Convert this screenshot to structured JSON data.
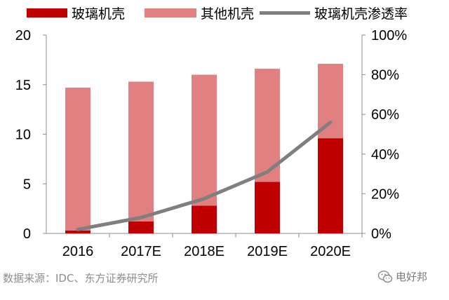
{
  "chart_data": {
    "type": "bar",
    "categories": [
      "2016",
      "2017E",
      "2018E",
      "2019E",
      "2020E"
    ],
    "series": [
      {
        "name": "玻璃机壳",
        "kind": "bar-stacked",
        "axis": "left",
        "color": "#c00000",
        "values": [
          0.3,
          1.2,
          2.8,
          5.2,
          9.6
        ]
      },
      {
        "name": "其他机壳",
        "kind": "bar-stacked",
        "axis": "left",
        "color": "#e08080",
        "values": [
          14.4,
          14.1,
          13.2,
          11.4,
          7.5
        ]
      },
      {
        "name": "玻璃机壳渗透率",
        "kind": "line",
        "axis": "right",
        "color": "#7f7f7f",
        "values": [
          0.02,
          0.08,
          0.175,
          0.31,
          0.56
        ]
      }
    ],
    "left_axis": {
      "min": 0,
      "max": 20,
      "ticks": [
        "0",
        "5",
        "10",
        "15",
        "20"
      ]
    },
    "right_axis": {
      "min": 0,
      "max": 1,
      "ticks": [
        "0%",
        "20%",
        "40%",
        "60%",
        "80%",
        "100%"
      ]
    },
    "grid": false,
    "legend_position": "top"
  },
  "source_text": "数据来源：IDC、东方证券研究所",
  "watermark": {
    "text": "电好邦",
    "icon": "wechat-icon"
  }
}
